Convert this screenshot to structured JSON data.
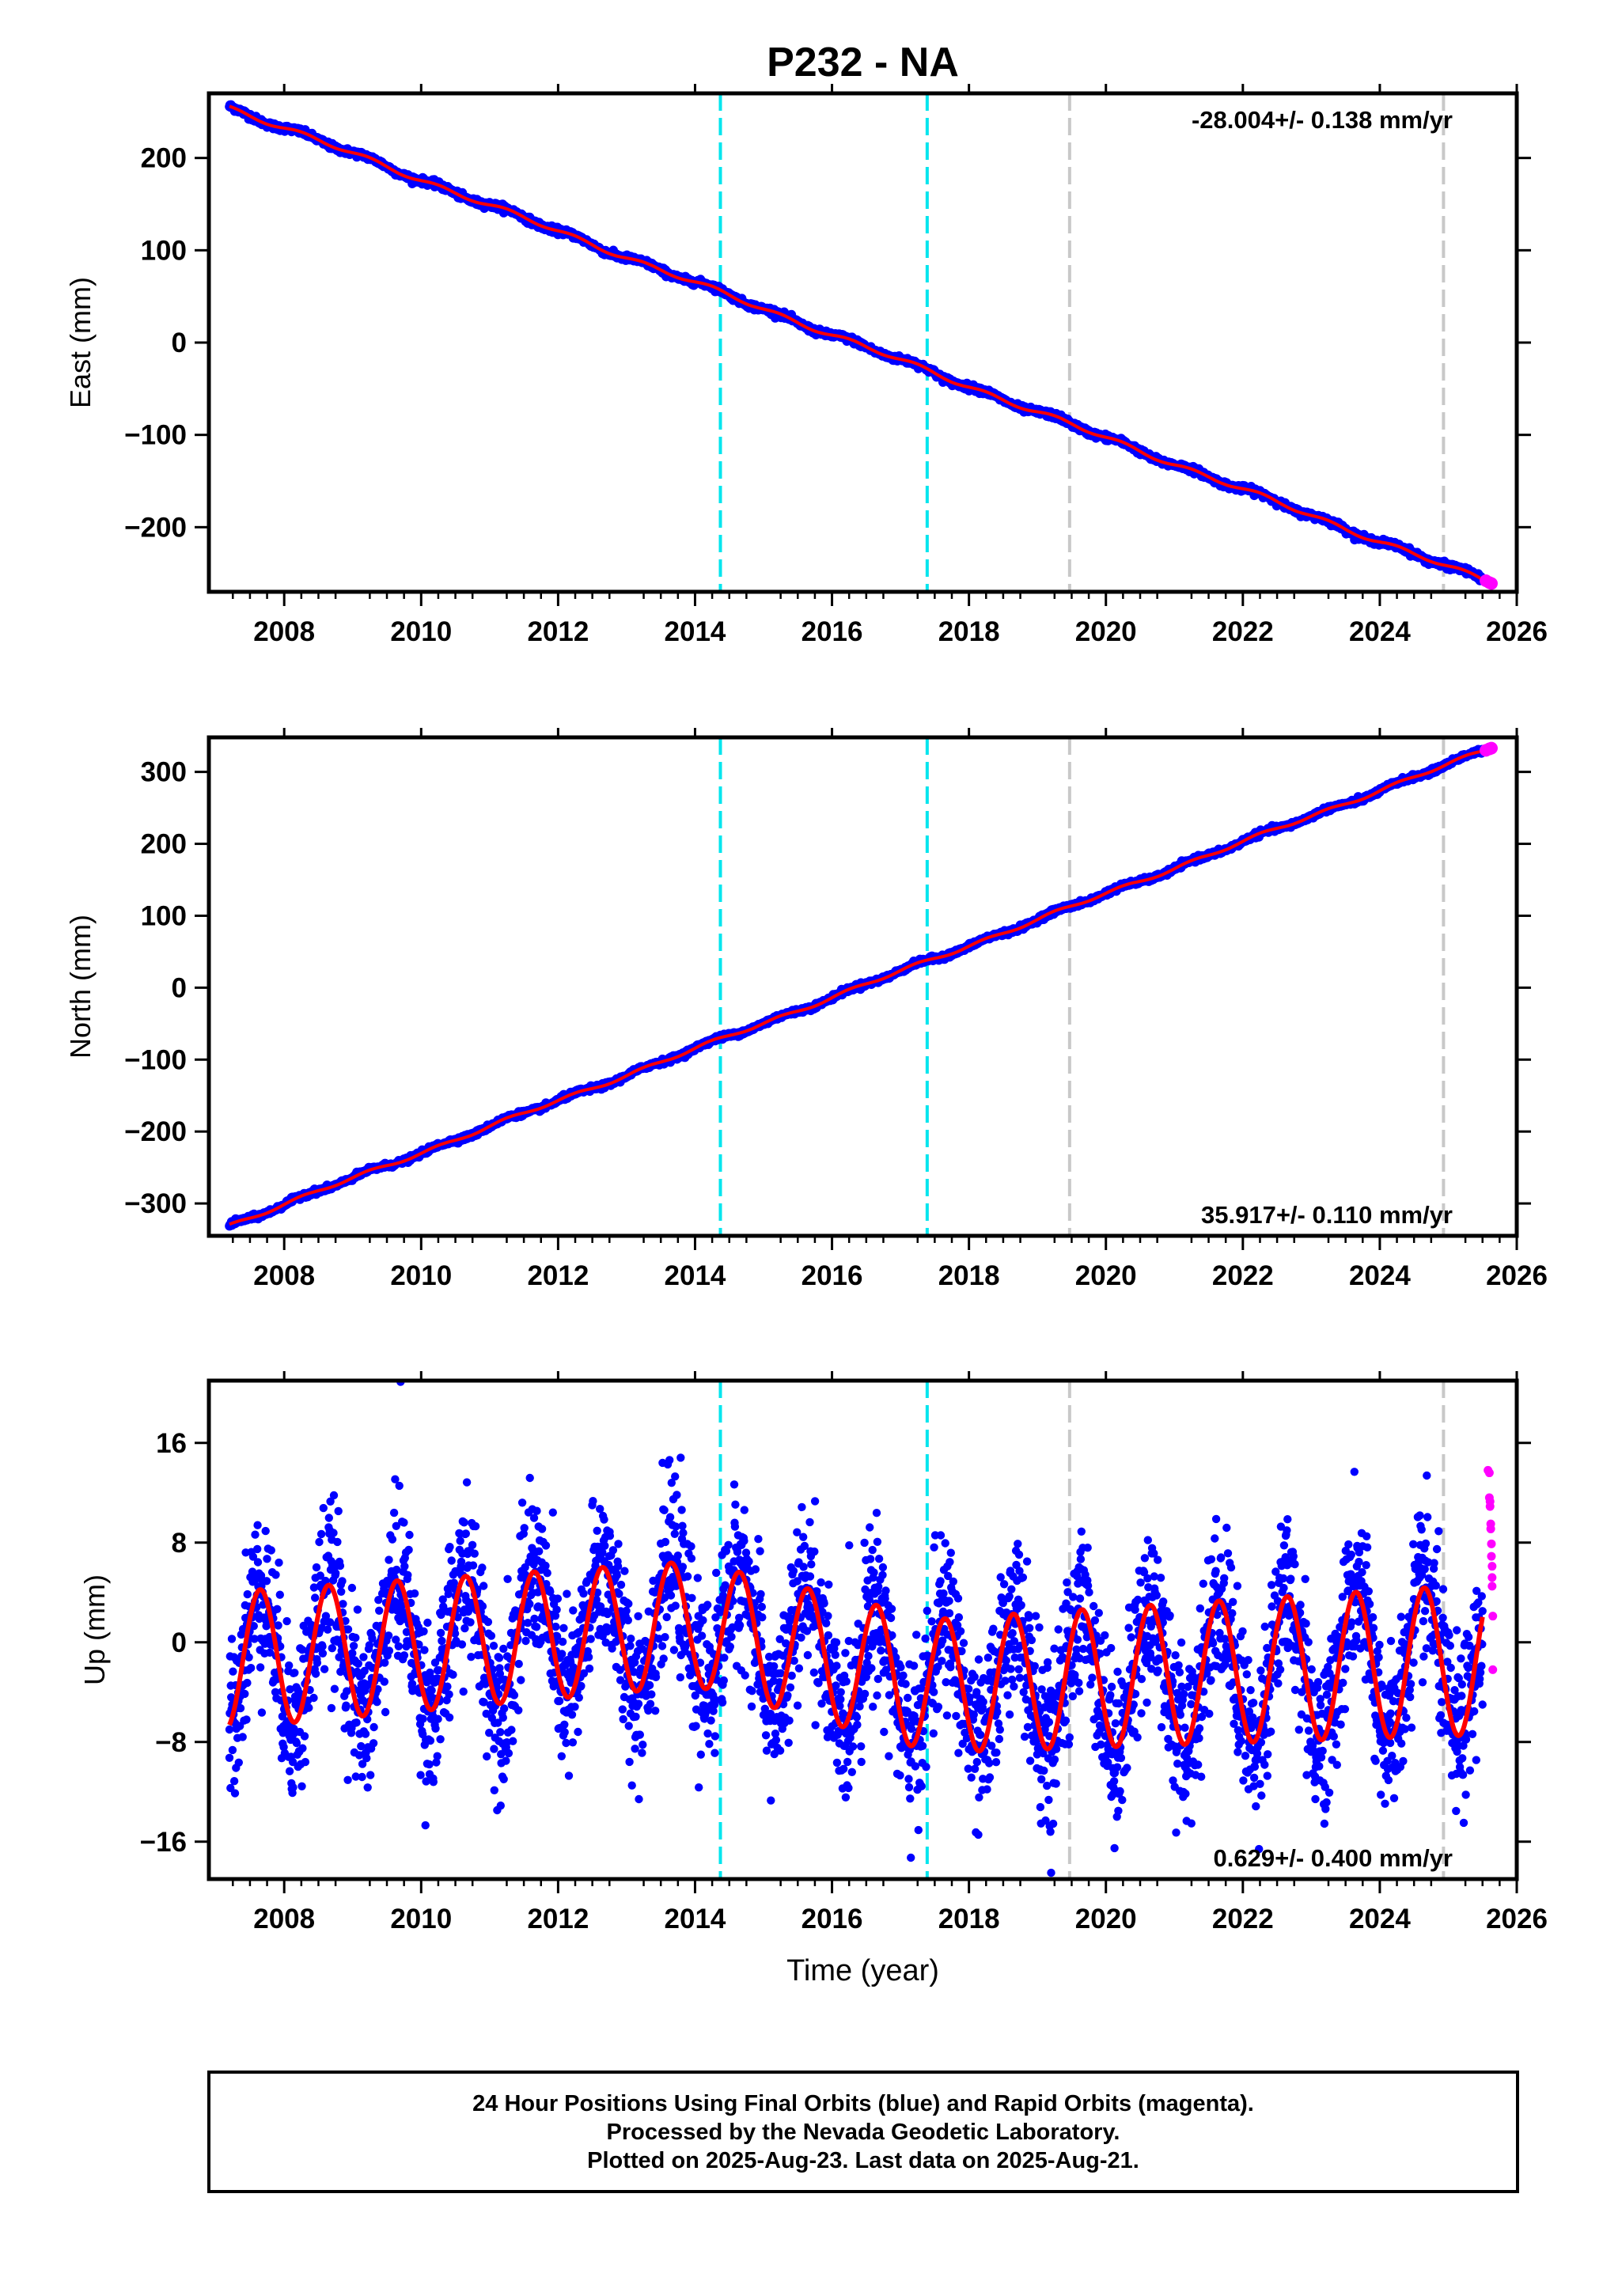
{
  "chart_data": [
    {
      "type": "scatter",
      "panel": "east",
      "title": "P232 - NA",
      "ylabel": "East (mm)",
      "xlabel": "",
      "xlim": [
        2006.9,
        2026.0
      ],
      "ylim": [
        -270,
        270
      ],
      "xticks": [
        2008,
        2010,
        2012,
        2014,
        2016,
        2018,
        2020,
        2022,
        2024,
        2026
      ],
      "yticks": [
        200,
        100,
        0,
        -100,
        -200
      ],
      "ytick_labels": [
        "200",
        "100",
        "0",
        "−100",
        "−200"
      ],
      "annotation": "-28.004+/- 0.138 mm/yr",
      "annotation_position": "top-right",
      "grid": false,
      "model_fit": {
        "x": [
          2007.2,
          2025.6
        ],
        "y": [
          255,
          -260
        ]
      },
      "rapid_orbit_points": {
        "x": [
          2025.55,
          2025.6,
          2025.63
        ],
        "y": [
          -258,
          -260,
          -261
        ]
      },
      "series": [
        {
          "color": "#0000ff",
          "x": [
            2007.2,
            2010,
            2013,
            2016,
            2019,
            2022,
            2025.5
          ],
          "y": [
            255,
            178,
            90,
            6,
            -76,
            -160,
            -257
          ]
        }
      ]
    },
    {
      "type": "scatter",
      "panel": "north",
      "title": "",
      "ylabel": "North (mm)",
      "xlabel": "",
      "xlim": [
        2006.9,
        2026.0
      ],
      "ylim": [
        -345,
        348
      ],
      "xticks": [
        2008,
        2010,
        2012,
        2014,
        2016,
        2018,
        2020,
        2022,
        2024,
        2026
      ],
      "yticks": [
        300,
        200,
        100,
        0,
        -100,
        -200,
        -300
      ],
      "ytick_labels": [
        "300",
        "200",
        "100",
        "0",
        "−100",
        "−200",
        "−300"
      ],
      "annotation": "35.917+/- 0.110 mm/yr",
      "annotation_position": "bottom-right",
      "grid": false,
      "model_fit": {
        "x": [
          2007.2,
          2025.6
        ],
        "y": [
          -330,
          332
        ]
      },
      "rapid_orbit_points": {
        "x": [
          2025.55,
          2025.6,
          2025.63
        ],
        "y": [
          330,
          332,
          333
        ]
      },
      "series": [
        {
          "color": "#0000ff",
          "x": [
            2007.2,
            2010,
            2013,
            2016,
            2019,
            2022,
            2025.5
          ],
          "y": [
            -330,
            -230,
            -120,
            -25,
            95,
            205,
            328
          ]
        }
      ]
    },
    {
      "type": "scatter",
      "panel": "up",
      "title": "",
      "ylabel": "Up (mm)",
      "xlabel": "Time (year)",
      "xlim": [
        2006.9,
        2026.0
      ],
      "ylim": [
        -19,
        21
      ],
      "xticks": [
        2008,
        2010,
        2012,
        2014,
        2016,
        2018,
        2020,
        2022,
        2024,
        2026
      ],
      "yticks": [
        16,
        8,
        0,
        -8,
        -16
      ],
      "ytick_labels": [
        "16",
        "8",
        "0",
        "−8",
        "−16"
      ],
      "annotation": "0.629+/- 0.400 mm/yr",
      "annotation_position": "bottom-right",
      "grid": false,
      "annual_amplitude_mm": {
        "2007": 5.5,
        "2014": 5.0,
        "2019": 5.5,
        "2025": 6.0
      },
      "annual_offset_mm": {
        "2007": -1.5,
        "2014": 1.5,
        "2017.5": -3.5,
        "2025": -1.5
      },
      "rapid_orbit_points": {
        "x": [
          2025.58,
          2025.6,
          2025.6,
          2025.61,
          2025.61,
          2025.62,
          2025.62,
          2025.63,
          2025.63,
          2025.64,
          2025.64,
          2025.64,
          2025.65,
          2025.65
        ],
        "y": [
          13.8,
          13.6,
          11.6,
          11.3,
          10.9,
          9.5,
          9.1,
          7.9,
          6.9,
          6.1,
          5.2,
          4.5,
          2.1,
          -2.2
        ]
      },
      "series": [
        {
          "color": "#0000ff",
          "x": [
            2007.2,
            2009.7,
            2014.3,
            2019.2,
            2025.5
          ],
          "y": [
            -7,
            20.9,
            2,
            -18.5,
            -5
          ]
        }
      ]
    }
  ],
  "event_lines": {
    "cyan": [
      2014.37,
      2017.39
    ],
    "gray": [
      2019.47,
      2024.93
    ],
    "cyan_color": "#00e5ee",
    "gray_color": "#c8c8c8"
  },
  "colors": {
    "final_orbits": "#0000ff",
    "rapid_orbits": "#ff00ff",
    "model": "#ff0000",
    "frame": "#000000"
  },
  "footer": {
    "line1": "24 Hour Positions Using Final Orbits (blue) and Rapid Orbits (magenta).",
    "line2": "Processed by the Nevada Geodetic Laboratory.",
    "line3": "Plotted on 2025-Aug-23. Last data on 2025-Aug-21."
  }
}
